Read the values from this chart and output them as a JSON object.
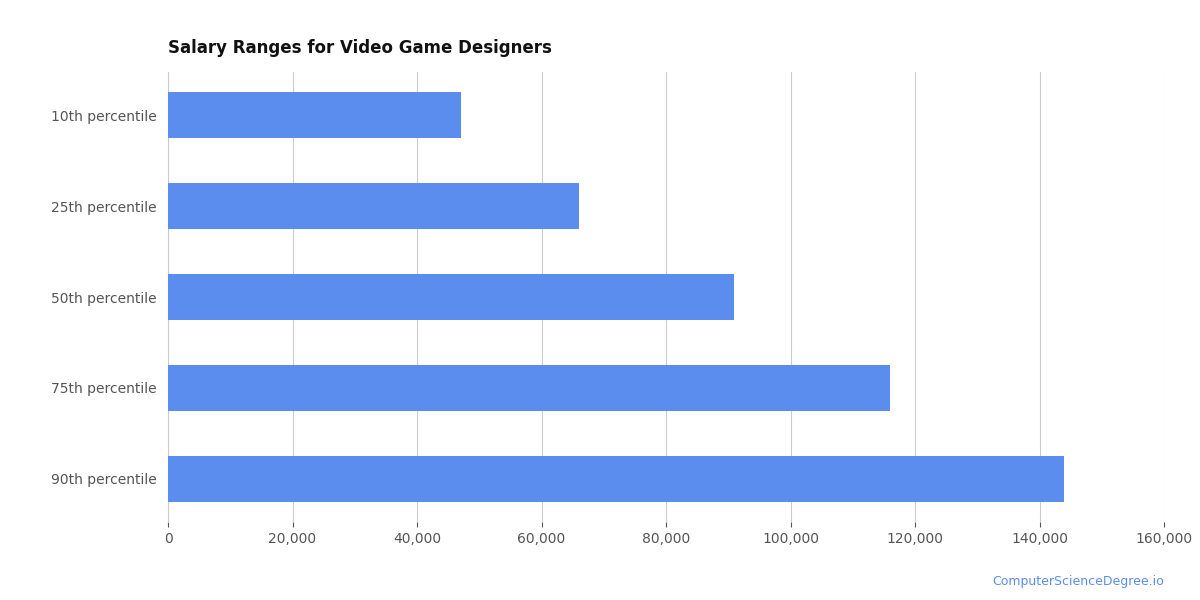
{
  "title": "Salary Ranges for Video Game Designers",
  "categories": [
    "10th percentile",
    "25th percentile",
    "50th percentile",
    "75th percentile",
    "90th percentile"
  ],
  "values": [
    47000,
    66000,
    91000,
    116000,
    144000
  ],
  "bar_color": "#5b8def",
  "xlim": [
    0,
    160000
  ],
  "xticks": [
    0,
    20000,
    40000,
    60000,
    80000,
    100000,
    120000,
    140000,
    160000
  ],
  "title_fontsize": 12,
  "tick_fontsize": 10,
  "background_color": "#ffffff",
  "watermark": "ComputerScienceDegree.io",
  "watermark_color": "#5b8def"
}
